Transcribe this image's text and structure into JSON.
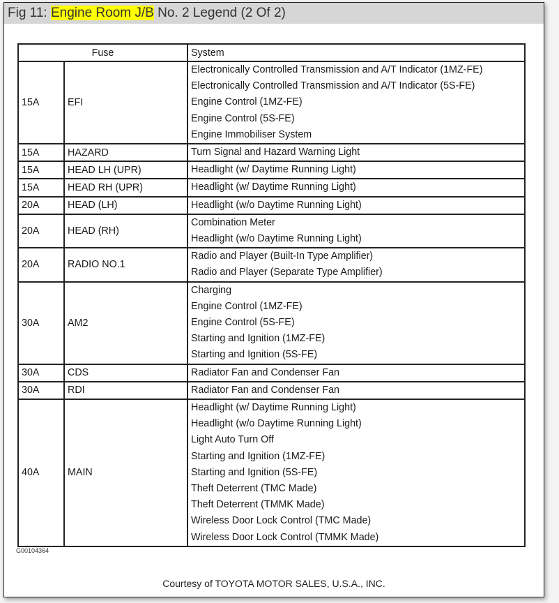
{
  "title": {
    "prefix": "Fig 11: ",
    "highlight": "Engine Room J/B",
    "suffix": " No. 2 Legend (2 Of 2)",
    "highlight_color": "#ffff00"
  },
  "table": {
    "headers": {
      "fuse": "Fuse",
      "system": "System"
    },
    "rows": [
      {
        "amp": "15A",
        "name": "EFI",
        "systems": [
          "Electronically Controlled Transmission and A/T Indicator (1MZ-FE)",
          "Electronically Controlled Transmission and A/T Indicator (5S-FE)",
          "Engine Control (1MZ-FE)",
          "Engine Control (5S-FE)",
          "Engine Immobiliser System"
        ]
      },
      {
        "amp": "15A",
        "name": "HAZARD",
        "systems": [
          "Turn Signal and Hazard Warning Light"
        ]
      },
      {
        "amp": "15A",
        "name": "HEAD LH (UPR)",
        "systems": [
          "Headlight (w/ Daytime Running Light)"
        ]
      },
      {
        "amp": "15A",
        "name": "HEAD RH (UPR)",
        "systems": [
          "Headlight (w/ Daytime Running Light)"
        ]
      },
      {
        "amp": "20A",
        "name": "HEAD (LH)",
        "systems": [
          "Headlight (w/o Daytime Running Light)"
        ]
      },
      {
        "amp": "20A",
        "name": "HEAD (RH)",
        "systems": [
          "Combination Meter",
          "Headlight (w/o Daytime Running Light)"
        ]
      },
      {
        "amp": "20A",
        "name": "RADIO NO.1",
        "systems": [
          "Radio and Player (Built-In Type Amplifier)",
          "Radio and Player (Separate Type Amplifier)"
        ]
      },
      {
        "amp": "30A",
        "name": "AM2",
        "systems": [
          "Charging",
          "Engine Control (1MZ-FE)",
          "Engine Control (5S-FE)",
          "Starting and Ignition (1MZ-FE)",
          "Starting and Ignition (5S-FE)"
        ]
      },
      {
        "amp": "30A",
        "name": "CDS",
        "systems": [
          "Radiator Fan and Condenser Fan"
        ]
      },
      {
        "amp": "30A",
        "name": "RDI",
        "systems": [
          "Radiator Fan and Condenser Fan"
        ]
      },
      {
        "amp": "40A",
        "name": "MAIN",
        "systems": [
          "Headlight (w/ Daytime Running Light)",
          "Headlight (w/o Daytime Running Light)",
          "Light Auto Turn Off",
          "Starting and Ignition (1MZ-FE)",
          "Starting and Ignition (5S-FE)",
          "Theft Deterrent (TMC Made)",
          "Theft Deterrent (TMMK Made)",
          "Wireless Door Lock Control (TMC Made)",
          "Wireless Door Lock Control (TMMK Made)"
        ]
      }
    ]
  },
  "figure_id": "G00104364",
  "courtesy": "Courtesy of TOYOTA MOTOR SALES, U.S.A., INC."
}
